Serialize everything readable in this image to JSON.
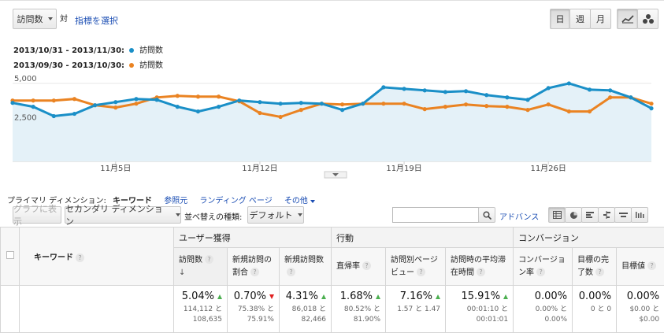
{
  "toolbar": {
    "metric_select": "訪問数",
    "vs_label": "対",
    "select_metric_link": "指標を選択",
    "period_day": "日",
    "period_week": "週",
    "period_month": "月"
  },
  "legend": {
    "range1": "2013/10/31 - 2013/11/30:",
    "range1_metric": "訪問数",
    "range2": "2013/09/30 - 2013/10/30:",
    "range2_metric": "訪問数"
  },
  "colors": {
    "series1": "#1a8fc7",
    "series2": "#ea8322",
    "area": "#e4f1f8"
  },
  "chart_data": {
    "type": "line",
    "y_ticks": [
      "5,000",
      "2,500"
    ],
    "ylim": [
      0,
      5400
    ],
    "x_tick_labels": [
      "11月5日",
      "11月12日",
      "11月19日",
      "11月26日"
    ],
    "x_tick_index": [
      5,
      12,
      19,
      26
    ],
    "grid": true,
    "series": [
      {
        "name": "2013/10/31 - 2013/11/30:",
        "values": [
          3750,
          3500,
          2900,
          3050,
          3600,
          3800,
          4000,
          3950,
          3500,
          3200,
          3500,
          3900,
          3800,
          3700,
          3750,
          3700,
          3300,
          3700,
          4750,
          4650,
          4550,
          4450,
          4500,
          4250,
          4100,
          3950,
          4700,
          5000,
          4600,
          4550,
          4100,
          3400
        ]
      },
      {
        "name": "2013/09/30 - 2013/10/30:",
        "values": [
          3900,
          3900,
          3900,
          4000,
          3600,
          3450,
          3700,
          4100,
          4200,
          4150,
          4150,
          3850,
          3100,
          2850,
          3300,
          3700,
          3650,
          3700,
          3700,
          3700,
          3350,
          3500,
          3650,
          3550,
          3500,
          3300,
          3650,
          3200,
          3200,
          4100,
          4100,
          3700
        ]
      }
    ]
  },
  "dimension_bar": {
    "label": "プライマリ ディメンション:",
    "current": "キーワード",
    "referrer": "参照元",
    "landing": "ランディング ページ",
    "other": "その他"
  },
  "controls": {
    "graph_btn": "グラフに表示",
    "secondary_dim": "セカンダリ ディメンション",
    "sort_label": "並べ替えの種類:",
    "sort_value": "デフォルト",
    "search_value": "",
    "advanced": "アドバンス"
  },
  "table": {
    "group_acq": "ユーザー獲得",
    "group_beh": "行動",
    "group_conv": "コンバージョン",
    "col_keyword": "キーワード",
    "col_visits": "訪問数",
    "col_new_visit_rate": "新規訪問の割合",
    "col_new_visits": "新規訪問数",
    "col_bounce": "直帰率",
    "col_pages_per_visit": "訪問別ページビュー",
    "col_avg_duration": "訪問時の平均滞在時間",
    "col_conv_rate": "コンバージョン率",
    "col_goal_completions": "目標の完了数",
    "col_goal_value": "目標値",
    "row": {
      "visits_pct": "5.04%",
      "visits_sub1": "114,112 と",
      "visits_sub2": "108,635",
      "new_rate_pct": "0.70%",
      "new_rate_sub1": "75.38% と",
      "new_rate_sub2": "75.91%",
      "new_visits_pct": "4.31%",
      "new_visits_sub1": "86,018 と",
      "new_visits_sub2": "82,466",
      "bounce_pct": "1.68%",
      "bounce_sub1": "80.52% と",
      "bounce_sub2": "81.90%",
      "ppv_pct": "7.16%",
      "ppv_sub": "1.57 と 1.47",
      "dur_pct": "15.91%",
      "dur_sub1": "00:01:10 と",
      "dur_sub2": "00:01:01",
      "conv_pct": "0.00%",
      "conv_sub1": "0.00% と",
      "conv_sub2": "0.00%",
      "goal_pct": "0.00%",
      "goal_sub": "0 と 0",
      "value_pct": "0.00%",
      "value_sub1": "$0.00 と",
      "value_sub2": "$0.00"
    }
  }
}
